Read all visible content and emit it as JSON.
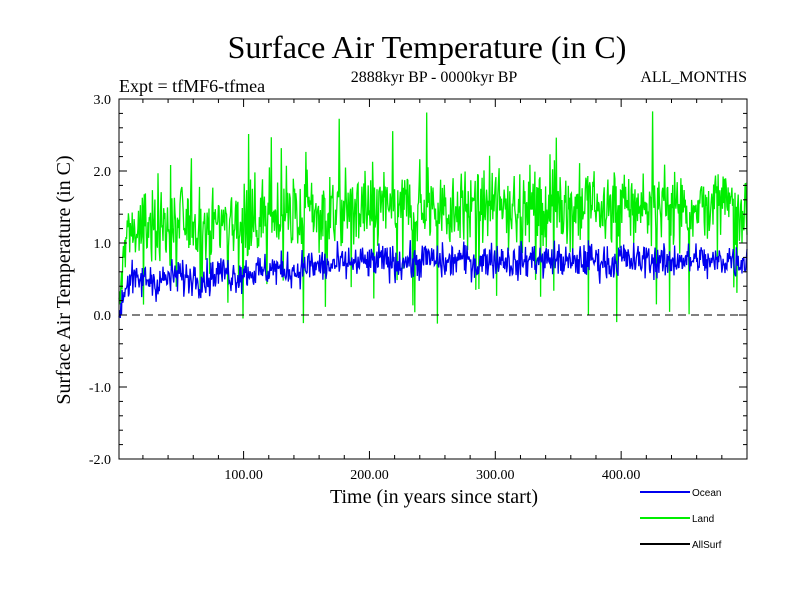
{
  "chart_data": {
    "type": "line",
    "title": "Surface Air Temperature (in C)",
    "subtitle_left": "Expt = tfMF6-tfmea",
    "subtitle_center": "2888kyr BP - 0000kyr BP",
    "subtitle_right": "ALL_MONTHS",
    "xlabel": "Time (in years since start)",
    "ylabel": "Surface Air Temperature (in C)",
    "xlim": [
      1,
      500
    ],
    "ylim": [
      -2.0,
      3.0
    ],
    "xticks": [
      100,
      200,
      300,
      400
    ],
    "xtick_labels": [
      "100.00",
      "200.00",
      "300.00",
      "400.00"
    ],
    "yticks": [
      -2,
      -1,
      0,
      1,
      2,
      3
    ],
    "ytick_labels": [
      "-2.0",
      "-1.0",
      "0.0",
      "1.0",
      "2.0",
      "3.0"
    ],
    "zero_line": 0.0,
    "series": [
      {
        "name": "Land",
        "color": "#00ee00",
        "x_start": 1,
        "x_step": 5,
        "values": [
          0.0,
          1.1,
          1.2,
          1.15,
          1.2,
          1.25,
          1.2,
          1.25,
          1.2,
          1.25,
          1.3,
          1.25,
          1.3,
          1.2,
          1.25,
          1.3,
          1.3,
          1.35,
          1.3,
          1.25,
          1.3,
          1.35,
          1.3,
          1.35,
          1.4,
          1.4,
          1.35,
          1.4,
          1.35,
          1.4,
          1.45,
          1.4,
          1.45,
          1.4,
          1.45,
          1.5,
          1.45,
          1.5,
          1.4,
          1.5,
          1.45,
          1.5,
          1.55,
          1.5,
          1.45,
          1.5,
          1.5,
          1.45,
          1.5,
          1.55,
          1.5,
          1.5,
          1.45,
          1.5,
          1.55,
          1.5,
          1.5,
          1.45,
          1.5,
          1.55,
          1.5,
          1.55,
          1.5,
          1.45,
          1.5,
          1.5,
          1.55,
          1.5,
          1.5,
          1.55,
          1.5,
          1.5,
          1.45,
          1.5,
          1.5,
          1.55,
          1.5,
          1.5,
          1.45,
          1.5,
          1.55,
          1.5,
          1.5,
          1.5,
          1.55,
          1.5,
          1.5,
          1.45,
          1.5,
          1.55,
          1.5,
          1.5,
          1.55,
          1.5,
          1.45,
          1.5,
          1.5,
          1.55,
          1.5,
          1.5
        ]
      },
      {
        "name": "Ocean",
        "color": "#0000ee",
        "x_start": 1,
        "x_step": 5,
        "values": [
          0.0,
          0.4,
          0.5,
          0.45,
          0.5,
          0.5,
          0.45,
          0.5,
          0.5,
          0.55,
          0.55,
          0.5,
          0.55,
          0.5,
          0.5,
          0.55,
          0.6,
          0.6,
          0.55,
          0.55,
          0.6,
          0.6,
          0.6,
          0.6,
          0.65,
          0.65,
          0.6,
          0.65,
          0.6,
          0.65,
          0.7,
          0.65,
          0.7,
          0.65,
          0.7,
          0.7,
          0.7,
          0.75,
          0.7,
          0.75,
          0.7,
          0.75,
          0.75,
          0.75,
          0.7,
          0.75,
          0.75,
          0.7,
          0.75,
          0.8,
          0.75,
          0.75,
          0.7,
          0.75,
          0.8,
          0.75,
          0.75,
          0.7,
          0.75,
          0.8,
          0.75,
          0.8,
          0.75,
          0.7,
          0.75,
          0.75,
          0.8,
          0.75,
          0.75,
          0.8,
          0.75,
          0.75,
          0.7,
          0.75,
          0.75,
          0.8,
          0.75,
          0.75,
          0.7,
          0.75,
          0.8,
          0.75,
          0.75,
          0.75,
          0.8,
          0.75,
          0.75,
          0.7,
          0.75,
          0.8,
          0.75,
          0.75,
          0.8,
          0.75,
          0.7,
          0.75,
          0.75,
          0.8,
          0.75,
          0.75
        ]
      },
      {
        "name": "AllSurf",
        "color": "#000000",
        "values": []
      }
    ],
    "legend": [
      "Ocean",
      "Land",
      "AllSurf"
    ],
    "legend_position": "bottom-right"
  }
}
